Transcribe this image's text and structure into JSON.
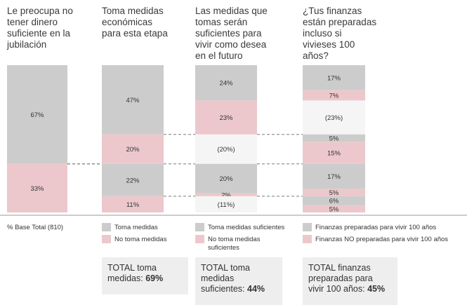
{
  "colors": {
    "grey": "#cccccc",
    "pink": "#ecc8cc",
    "gap": "#f5f5f5",
    "dash": "#7a7a7a",
    "axis": "#999999"
  },
  "chart_data": {
    "type": "bar",
    "subtype": "stacked-waterfall",
    "columns": [
      {
        "header": "Le preocupa no\ntener dinero\nsuficiente en la\njubilación",
        "segments": [
          {
            "label": "67%",
            "value": 67,
            "kind": "grey"
          },
          {
            "label": "33%",
            "value": 33,
            "kind": "pink"
          }
        ]
      },
      {
        "header": "Toma medidas\neconómicas\npara esta etapa",
        "segments": [
          {
            "label": "47%",
            "value": 47,
            "kind": "grey"
          },
          {
            "label": "20%",
            "value": 20,
            "kind": "pink"
          },
          {
            "label": "22%",
            "value": 22,
            "kind": "grey"
          },
          {
            "label": "11%",
            "value": 11,
            "kind": "pink"
          }
        ]
      },
      {
        "header": "Las medidas que\ntomas serán\nsuficientes para\nvivir como desea\nen el futuro",
        "segments": [
          {
            "label": "24%",
            "value": 24,
            "kind": "grey"
          },
          {
            "label": "23%",
            "value": 23,
            "kind": "pink"
          },
          {
            "label": "(20%)",
            "value": 20,
            "kind": "gap"
          },
          {
            "label": "20%",
            "value": 20,
            "kind": "grey"
          },
          {
            "label": "2%",
            "value": 2,
            "kind": "pink"
          },
          {
            "label": "(11%)",
            "value": 11,
            "kind": "gap"
          }
        ]
      },
      {
        "header": "¿Tus finanzas\nestán preparadas\nincluso si\nvivieses 100\naños?",
        "segments": [
          {
            "label": "17%",
            "value": 17,
            "kind": "grey"
          },
          {
            "label": "7%",
            "value": 7,
            "kind": "pink"
          },
          {
            "label": "(23%)",
            "value": 23,
            "kind": "gap"
          },
          {
            "label": "5%",
            "value": 5,
            "kind": "grey"
          },
          {
            "label": "15%",
            "value": 15,
            "kind": "pink"
          },
          {
            "label": "17%",
            "value": 17,
            "kind": "grey"
          },
          {
            "label": "5%",
            "value": 5,
            "kind": "pink"
          },
          {
            "label": "6%",
            "value": 6,
            "kind": "grey"
          },
          {
            "label": "5%",
            "value": 5,
            "kind": "pink"
          }
        ]
      }
    ],
    "base_label": "% Base Total (810)",
    "legends": [
      [
        {
          "kind": "grey",
          "label": "Toma medidas"
        },
        {
          "kind": "pink",
          "label": "No toma medidas"
        }
      ],
      [
        {
          "kind": "grey",
          "label": "Toma medidas suficientes"
        },
        {
          "kind": "pink",
          "label": "No toma medidas\nsuficientes"
        }
      ],
      [
        {
          "kind": "grey",
          "label": "Finanzas preparadas para vivir 100 años"
        },
        {
          "kind": "pink",
          "label": "Finanzas NO preparadas para vivir 100 años"
        }
      ]
    ],
    "totals": [
      {
        "text": "TOTAL toma\nmedidas: ",
        "value": "69%"
      },
      {
        "text": "TOTAL toma\nmedidas\nsuficientes: ",
        "value": "44%"
      },
      {
        "text": "TOTAL finanzas\npreparadas para\nvivir 100 años: ",
        "value": "45%"
      }
    ]
  }
}
